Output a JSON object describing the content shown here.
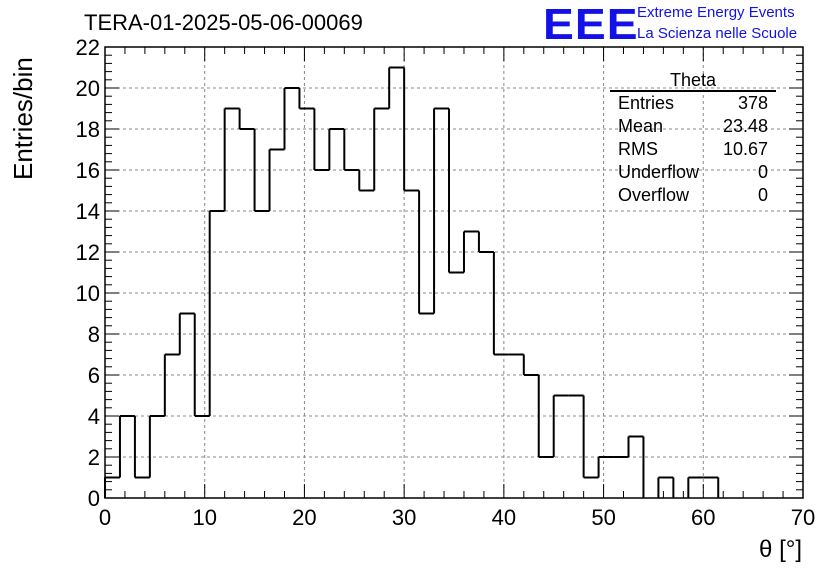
{
  "title": "TERA-01-2025-05-06-00069",
  "logo": {
    "mark": "EEE",
    "line1": "Extreme Energy Events",
    "line2": "La Scienza nelle Scuole",
    "color": "#1212e6"
  },
  "stats": {
    "name": "Theta",
    "rows": [
      {
        "label": "Entries",
        "value": "378"
      },
      {
        "label": "Mean",
        "value": "23.48"
      },
      {
        "label": "RMS",
        "value": "10.67"
      },
      {
        "label": "Underflow",
        "value": "0"
      },
      {
        "label": "Overflow",
        "value": "0"
      }
    ]
  },
  "chart_data": {
    "type": "bar",
    "style": "step-histogram",
    "xlabel": "θ [°]",
    "ylabel": "Entries/bin",
    "xlim": [
      0,
      70
    ],
    "ylim": [
      0,
      22
    ],
    "bin_width": 1.5,
    "x_ticks": [
      0,
      10,
      20,
      30,
      40,
      50,
      60,
      70
    ],
    "y_ticks": [
      0,
      2,
      4,
      6,
      8,
      10,
      12,
      14,
      16,
      18,
      20,
      22
    ],
    "grid": true,
    "values": [
      1,
      4,
      1,
      4,
      7,
      9,
      4,
      14,
      19,
      18,
      14,
      17,
      20,
      19,
      16,
      18,
      16,
      15,
      19,
      21,
      15,
      9,
      19,
      11,
      13,
      12,
      7,
      7,
      6,
      2,
      5,
      5,
      1,
      2,
      2,
      3,
      0,
      1,
      0,
      1,
      1,
      0,
      0,
      0,
      0,
      0,
      0
    ]
  }
}
